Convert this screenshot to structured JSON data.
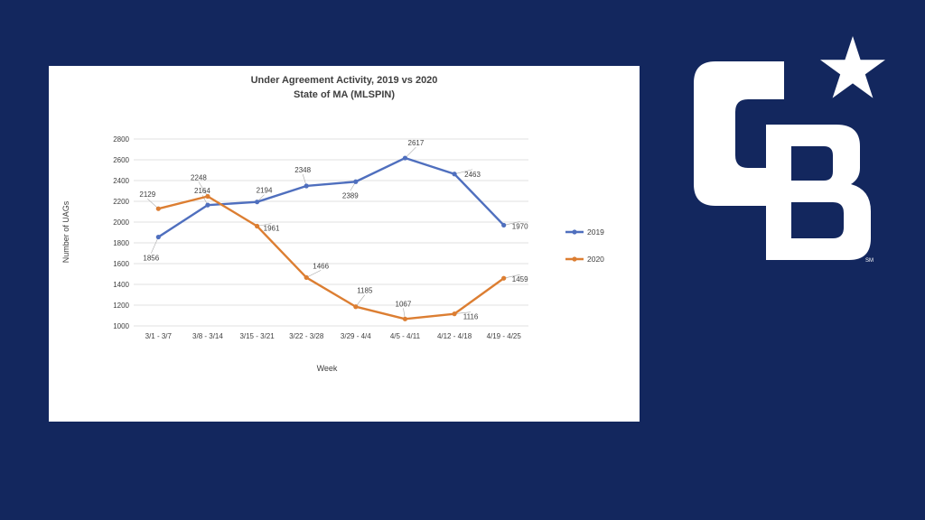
{
  "chart_data": {
    "type": "line",
    "title": "Under Agreement Activity,  2019 vs 2020",
    "subtitle": "State of MA (MLSPIN)",
    "xlabel": "Week",
    "ylabel": "Number of UAGs",
    "categories": [
      "3/1 - 3/7",
      "3/8 - 3/14",
      "3/15 - 3/21",
      "3/22 - 3/28",
      "3/29 - 4/4",
      "4/5 - 4/11",
      "4/12 - 4/18",
      "4/19 - 4/25"
    ],
    "ylim": [
      1000,
      2800
    ],
    "yticks": [
      1000,
      1200,
      1400,
      1600,
      1800,
      2000,
      2200,
      2400,
      2600,
      2800
    ],
    "grid": true,
    "legend_position": "right",
    "series": [
      {
        "name": "2019",
        "color": "#4f6fbe",
        "values": [
          1856,
          2164,
          2194,
          2348,
          2389,
          2617,
          2463,
          1970
        ]
      },
      {
        "name": "2020",
        "color": "#dc7e32",
        "values": [
          2129,
          2248,
          1961,
          1466,
          1185,
          1067,
          1116,
          1459
        ]
      }
    ]
  },
  "logo": {
    "text": "CB",
    "mark": "SM",
    "star_icon": "star-icon",
    "color": "#ffffff"
  }
}
